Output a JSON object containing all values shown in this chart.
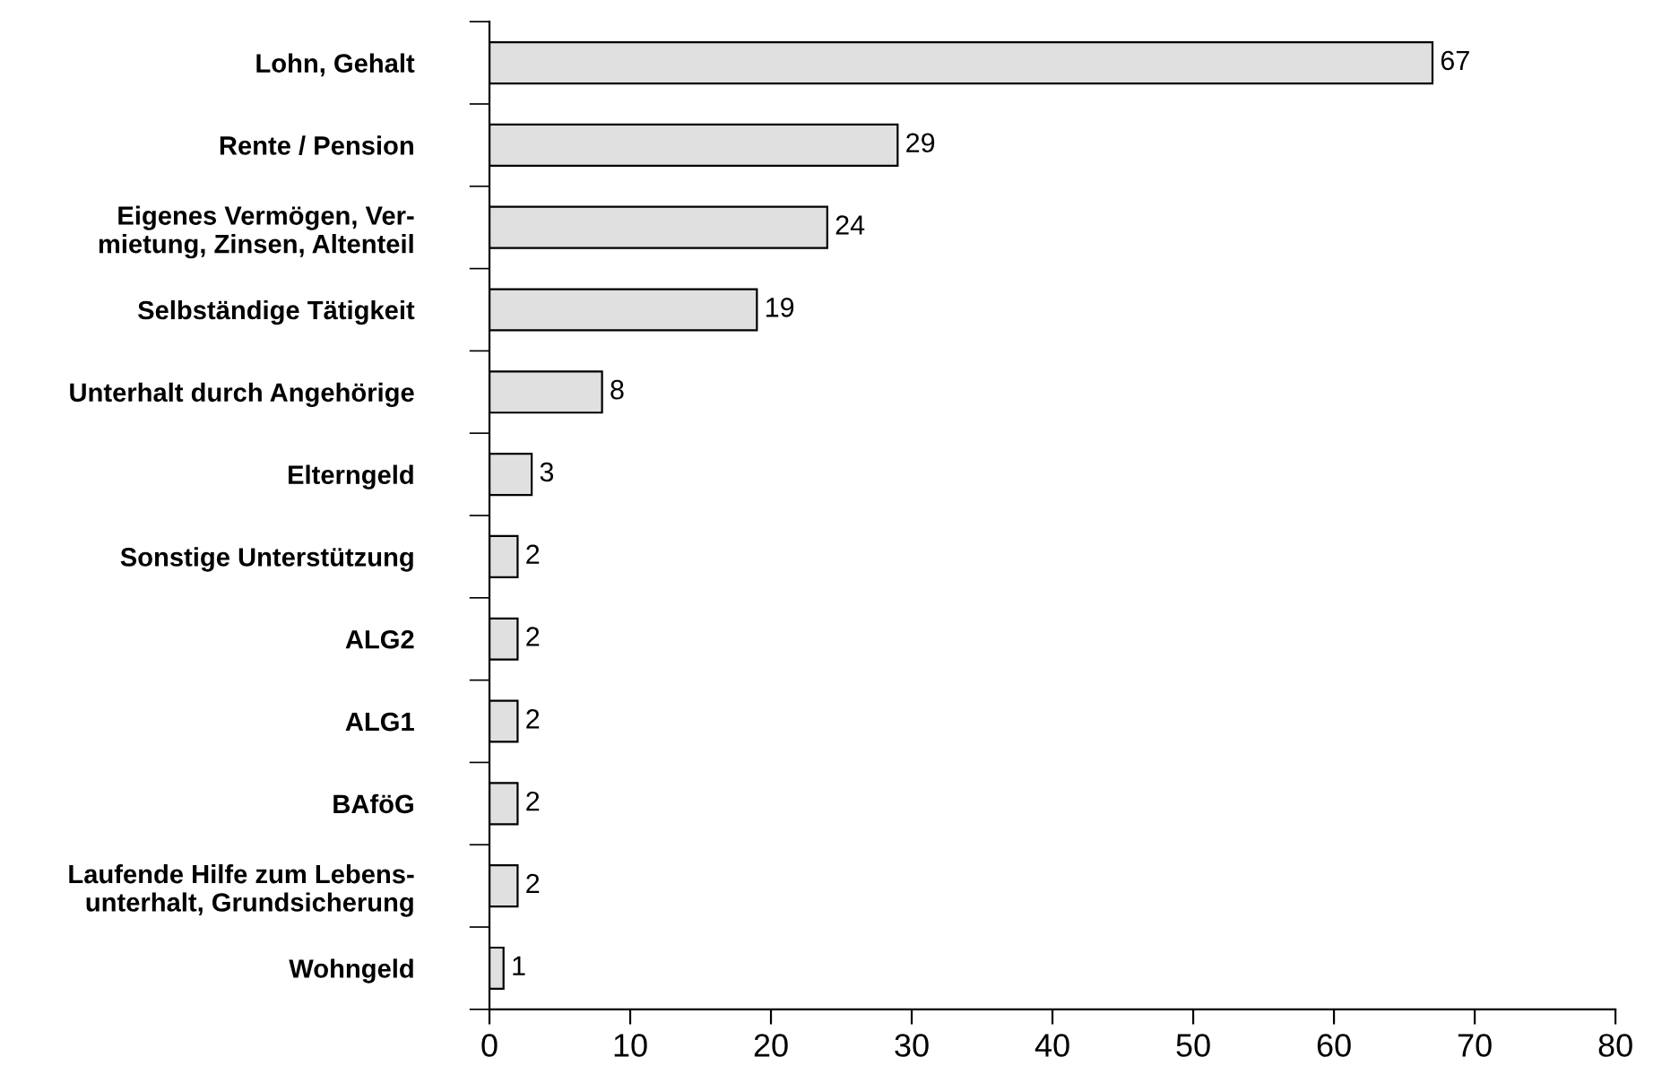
{
  "chart_data": {
    "type": "bar",
    "orientation": "horizontal",
    "categories": [
      "Lohn, Gehalt",
      "Rente / Pension",
      "Eigenes Vermögen, Ver-\nmietung, Zinsen, Altenteil",
      "Selbständige Tätigkeit",
      "Unterhalt durch Angehörige",
      "Elterngeld",
      "Sonstige Unterstützung",
      "ALG2",
      "ALG1",
      "BAföG",
      "Laufende Hilfe zum Lebens-\nunterhalt, Grundsicherung",
      "Wohngeld"
    ],
    "values": [
      67,
      29,
      24,
      19,
      8,
      3,
      2,
      2,
      2,
      2,
      2,
      1
    ],
    "color": "#e0e0e0",
    "xlim": [
      0,
      80
    ],
    "xticks": [
      0,
      10,
      20,
      30,
      40,
      50,
      60,
      70,
      80
    ],
    "data_labels": true,
    "grid": false,
    "legend": false
  }
}
